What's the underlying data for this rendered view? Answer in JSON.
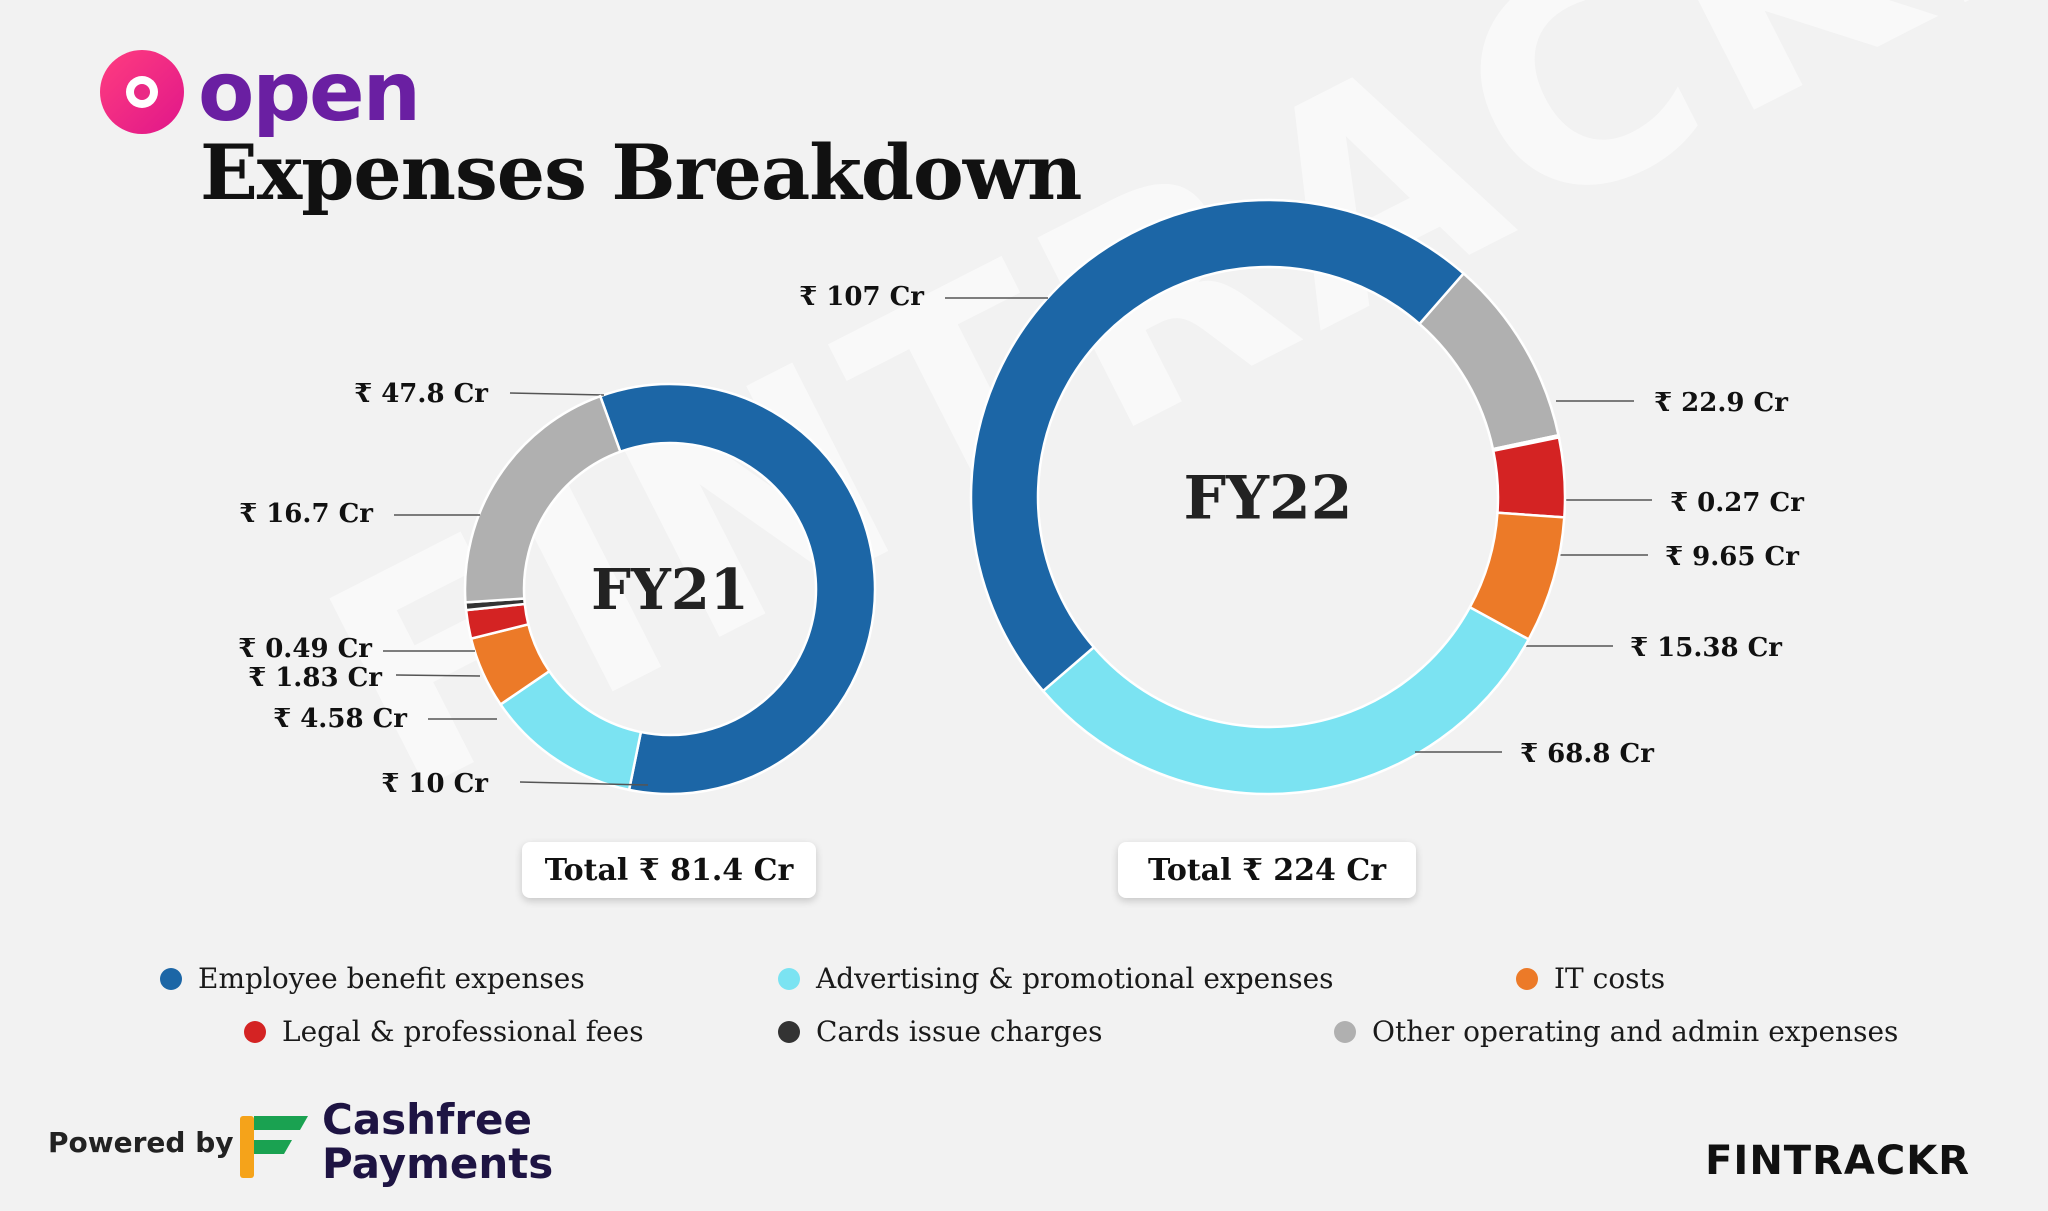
{
  "brand": {
    "name": "open"
  },
  "title": "Expenses Breakdown",
  "watermark": "FINTRACKR",
  "colors": {
    "employee": "#1c66a6",
    "advertising": "#7be3f2",
    "it": "#ec7a28",
    "legal": "#d42323",
    "cards": "#333333",
    "other": "#b0b0b0"
  },
  "chart_data": [
    {
      "type": "pie",
      "donut": true,
      "center_label": "FY21",
      "total_label": "Total ₹ 81.4 Cr",
      "slices": [
        {
          "category": "Employee benefit expenses",
          "value": 47.8,
          "label": "₹ 47.8 Cr",
          "color_key": "employee"
        },
        {
          "category": "Advertising & promotional expenses",
          "value": 10,
          "label": "₹ 10 Cr",
          "color_key": "advertising"
        },
        {
          "category": "IT costs",
          "value": 4.58,
          "label": "₹ 4.58 Cr",
          "color_key": "it"
        },
        {
          "category": "Legal & professional fees",
          "value": 1.83,
          "label": "₹ 1.83 Cr",
          "color_key": "legal"
        },
        {
          "category": "Cards issue charges",
          "value": 0.49,
          "label": "₹ 0.49 Cr",
          "color_key": "cards"
        },
        {
          "category": "Other operating and admin expenses",
          "value": 16.7,
          "label": "₹ 16.7 Cr",
          "color_key": "other"
        }
      ]
    },
    {
      "type": "pie",
      "donut": true,
      "center_label": "FY22",
      "total_label": "Total ₹ 224 Cr",
      "slices": [
        {
          "category": "Other operating and admin expenses",
          "value": 22.9,
          "label": "₹ 22.9 Cr",
          "color_key": "other"
        },
        {
          "category": "Cards issue charges",
          "value": 0.27,
          "label": "₹ 0.27 Cr",
          "color_key": "cards"
        },
        {
          "category": "Legal & professional fees",
          "value": 9.65,
          "label": "₹ 9.65 Cr",
          "color_key": "legal"
        },
        {
          "category": "IT costs",
          "value": 15.38,
          "label": "₹ 15.38 Cr",
          "color_key": "it"
        },
        {
          "category": "Advertising & promotional expenses",
          "value": 68.8,
          "label": "₹ 68.8 Cr",
          "color_key": "advertising"
        },
        {
          "category": "Employee benefit expenses",
          "value": 107,
          "label": "₹ 107 Cr",
          "color_key": "employee"
        }
      ]
    }
  ],
  "legend": [
    {
      "label": "Employee benefit expenses",
      "color_key": "employee"
    },
    {
      "label": "Advertising & promotional expenses",
      "color_key": "advertising"
    },
    {
      "label": "IT costs",
      "color_key": "it"
    },
    {
      "label": "Legal & professional fees",
      "color_key": "legal"
    },
    {
      "label": "Cards issue charges",
      "color_key": "cards"
    },
    {
      "label": "Other operating and admin expenses",
      "color_key": "other"
    }
  ],
  "footer": {
    "powered_by": "Powered by",
    "cashfree_line1": "Cashfree",
    "cashfree_line2": "Payments",
    "fintrackr": "FINTRACKR"
  }
}
